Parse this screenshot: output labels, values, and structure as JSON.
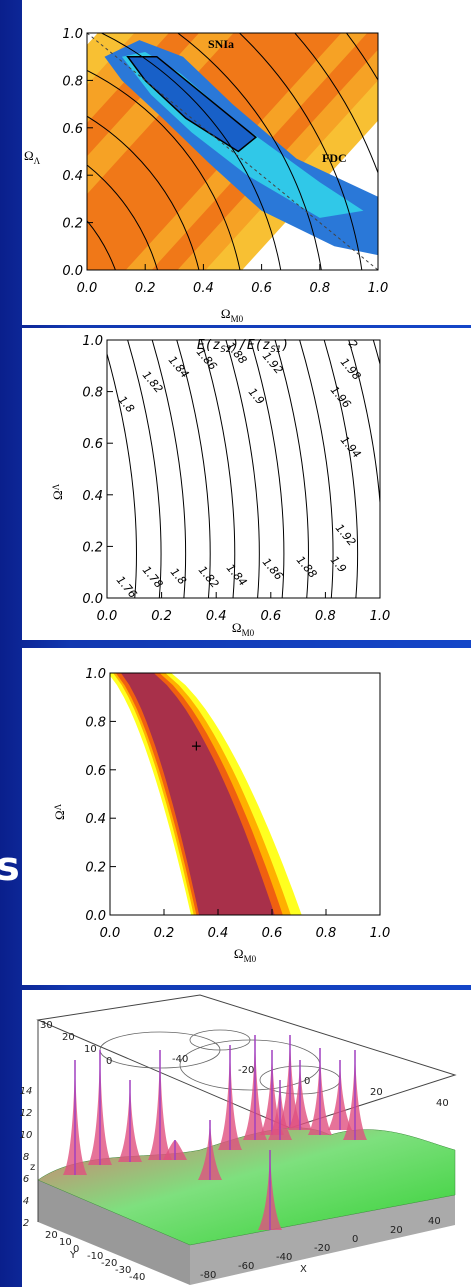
{
  "edge_text": "s",
  "panels": [
    {
      "x_ticks": [
        "0.0",
        "0.2",
        "0.4",
        "0.6",
        "0.8",
        "1.0"
      ],
      "y_ticks": [
        "1.0",
        "0.8",
        "0.6",
        "0.4",
        "0.2",
        "0.0"
      ],
      "y_label": "Ω",
      "y_label_sub": "Λ",
      "x_label": "Ω",
      "x_label_sub": "M0",
      "annotations": [
        "SNIa",
        "FDC"
      ]
    },
    {
      "title": [
        "E(z",
        "S2",
        ")/E(z",
        "S1",
        ")"
      ],
      "x_ticks": [
        "0.0",
        "0.2",
        "0.4",
        "0.6",
        "0.8",
        "1.0"
      ],
      "y_ticks": [
        "1.0",
        "0.8",
        "0.6",
        "0.4",
        "0.2",
        "0.0"
      ],
      "y_label": "Ω",
      "y_label_sub": "Λ",
      "x_label": "Ω",
      "x_label_sub": "M0",
      "contour_labels": [
        "1.8",
        "1.82",
        "1.84",
        "1.86",
        "1.88",
        "1.92",
        "1.9",
        "2",
        "1.98",
        "1.96",
        "1.94",
        "1.92",
        "1.76",
        "1.78",
        "1.8",
        "1.82",
        "1.84",
        "1.86",
        "1.88",
        "1.9"
      ]
    },
    {
      "x_ticks": [
        "0.0",
        "0.2",
        "0.4",
        "0.6",
        "0.8",
        "1.0"
      ],
      "y_ticks": [
        "1.0",
        "0.8",
        "0.6",
        "0.4",
        "0.2",
        "0.0"
      ],
      "y_label": "Ω",
      "y_label_sub": "Λ",
      "x_label": "Ω",
      "x_label_sub": "M0",
      "marker": "+"
    },
    {
      "z_ticks": [
        "14",
        "12",
        "10",
        "8",
        "6",
        "4",
        "2"
      ],
      "y_ticks": [
        "20",
        "10",
        "0",
        "-10",
        "-20",
        "-30",
        "-40"
      ],
      "x_ticks": [
        "-80",
        "-60",
        "-40",
        "-20",
        "0",
        "20",
        "40"
      ],
      "top_left_ticks": [
        "30",
        "20",
        "10",
        "0"
      ],
      "top_right_ticks": [
        "-40",
        "-20",
        "0",
        "20",
        "40"
      ],
      "x_label": "X",
      "y_label": "Y",
      "z_label": "z"
    }
  ]
}
